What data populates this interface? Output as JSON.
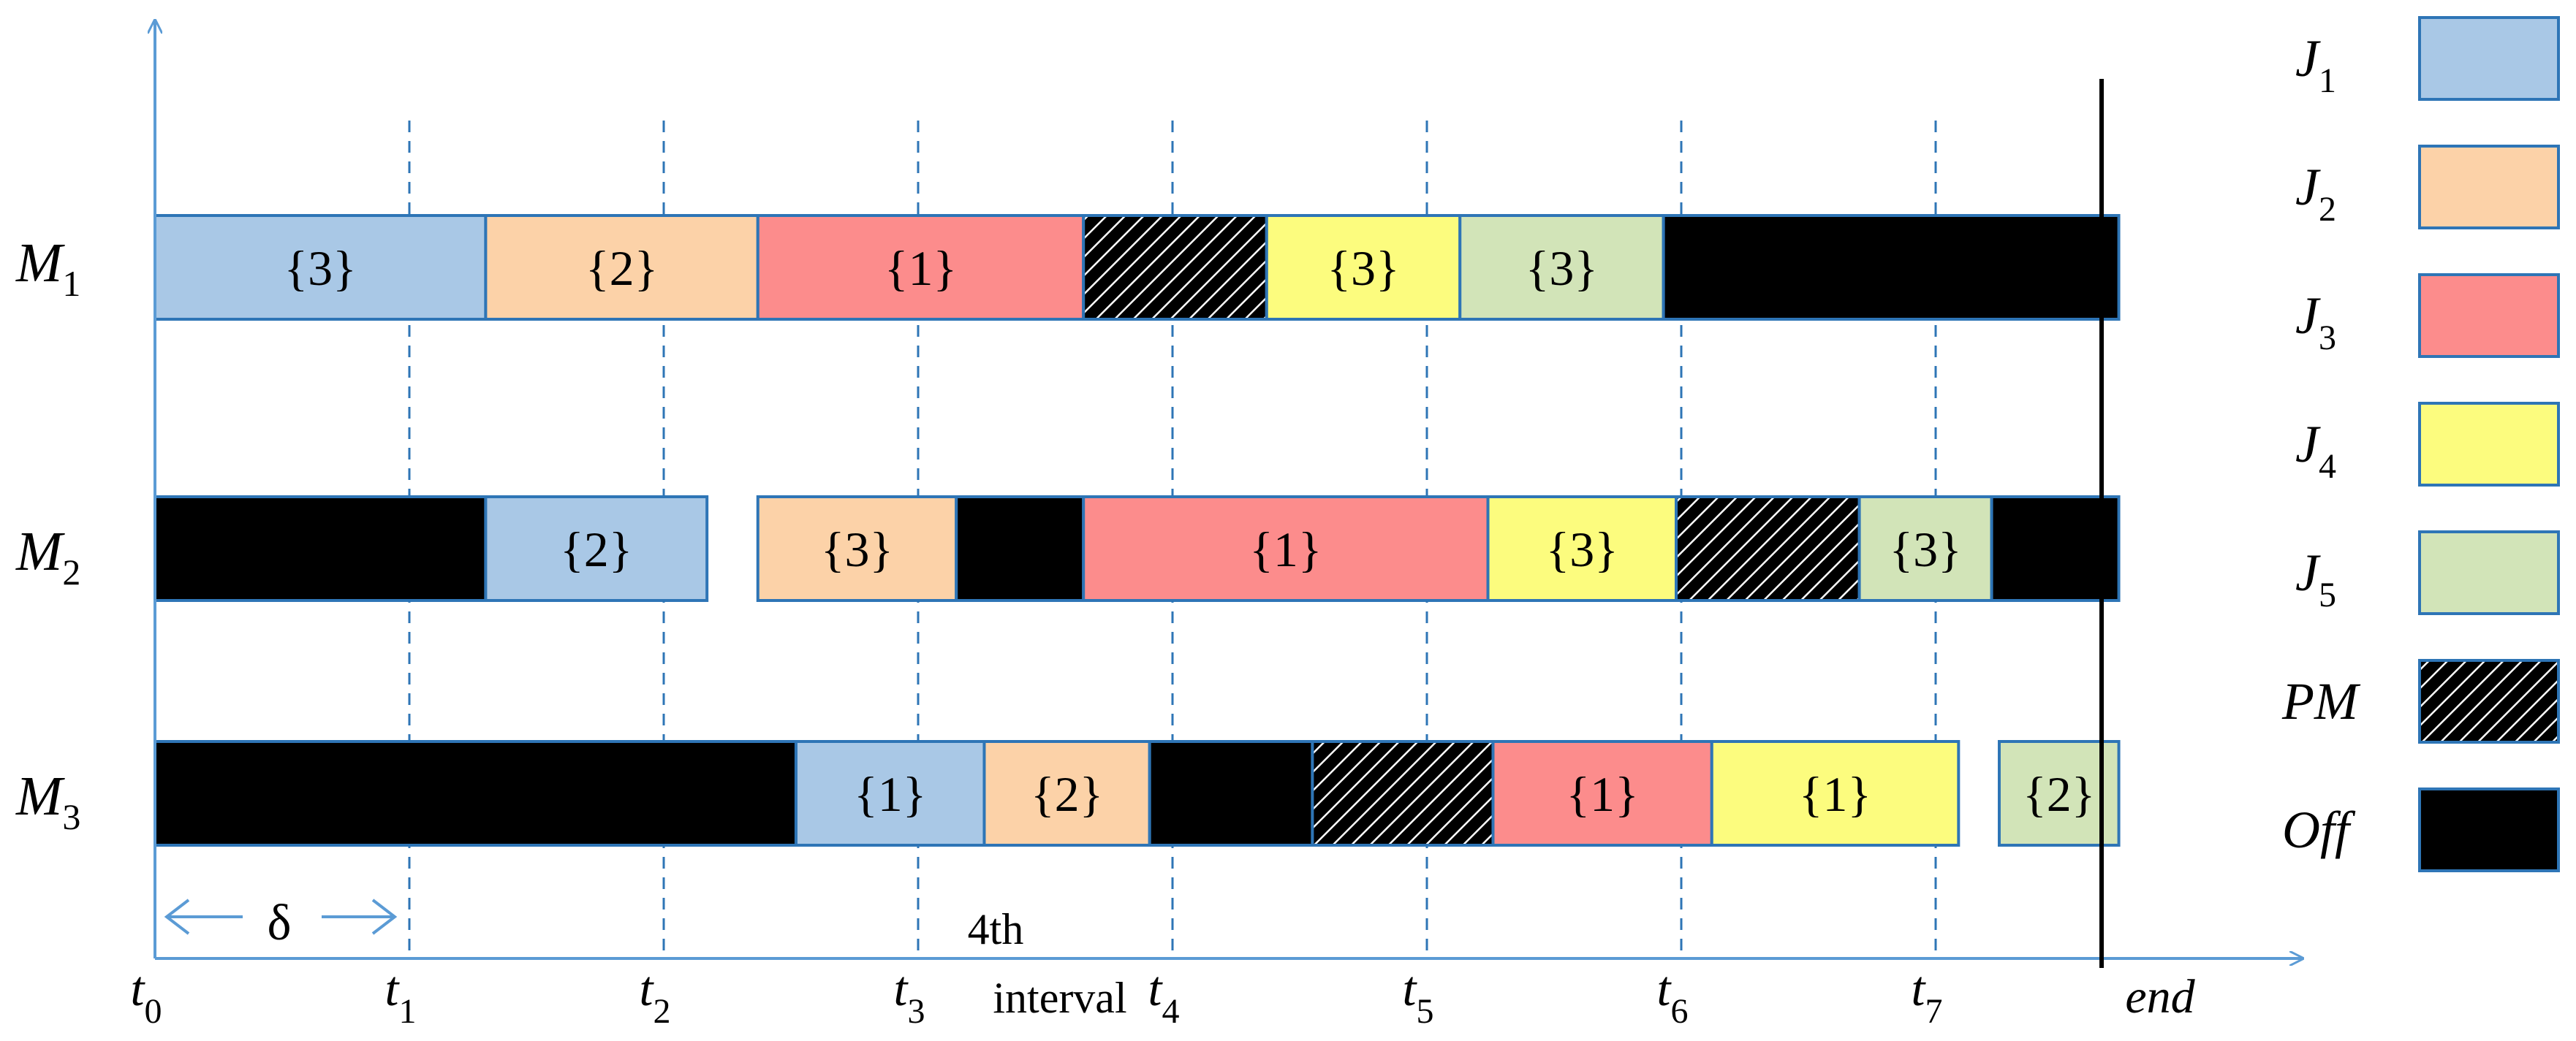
{
  "machines": [
    {
      "name": "M",
      "sub": "1",
      "blocks": [
        {
          "from": 0,
          "to": 1.3,
          "kind": "J1",
          "label": "{3}"
        },
        {
          "from": 1.3,
          "to": 2.37,
          "kind": "J2",
          "label": "{2}"
        },
        {
          "from": 2.37,
          "to": 3.65,
          "kind": "J3",
          "label": "{1}"
        },
        {
          "from": 3.65,
          "to": 4.37,
          "kind": "PM",
          "label": ""
        },
        {
          "from": 4.37,
          "to": 5.13,
          "kind": "J4",
          "label": "{3}"
        },
        {
          "from": 5.13,
          "to": 5.93,
          "kind": "J5",
          "label": "{3}"
        },
        {
          "from": 5.93,
          "to": 7.72,
          "kind": "Off",
          "label": ""
        }
      ]
    },
    {
      "name": "M",
      "sub": "2",
      "blocks": [
        {
          "from": 0,
          "to": 1.3,
          "kind": "Off",
          "label": ""
        },
        {
          "from": 1.3,
          "to": 2.17,
          "kind": "J1",
          "label": "{2}"
        },
        {
          "from": 2.37,
          "to": 3.15,
          "kind": "J2",
          "label": "{3}"
        },
        {
          "from": 3.15,
          "to": 3.65,
          "kind": "Off",
          "label": ""
        },
        {
          "from": 3.65,
          "to": 5.24,
          "kind": "J3",
          "label": "{1}"
        },
        {
          "from": 5.24,
          "to": 5.98,
          "kind": "J4",
          "label": "{3}"
        },
        {
          "from": 5.98,
          "to": 6.7,
          "kind": "PM",
          "label": ""
        },
        {
          "from": 6.7,
          "to": 7.22,
          "kind": "J5",
          "label": "{3}"
        },
        {
          "from": 7.22,
          "to": 7.72,
          "kind": "Off",
          "label": ""
        }
      ]
    },
    {
      "name": "M",
      "sub": "3",
      "blocks": [
        {
          "from": 0,
          "to": 2.52,
          "kind": "Off",
          "label": ""
        },
        {
          "from": 2.52,
          "to": 3.26,
          "kind": "J1",
          "label": "{1}"
        },
        {
          "from": 3.26,
          "to": 3.91,
          "kind": "J2",
          "label": "{2}"
        },
        {
          "from": 3.91,
          "to": 4.55,
          "kind": "Off",
          "label": ""
        },
        {
          "from": 4.55,
          "to": 5.26,
          "kind": "PM",
          "label": ""
        },
        {
          "from": 5.26,
          "to": 6.12,
          "kind": "J3",
          "label": "{1}"
        },
        {
          "from": 6.12,
          "to": 7.09,
          "kind": "J4",
          "label": "{1}"
        },
        {
          "from": 7.25,
          "to": 7.72,
          "kind": "J5",
          "label": "{2}"
        }
      ]
    }
  ],
  "ticks": [
    {
      "name": "t",
      "sub": "0"
    },
    {
      "name": "t",
      "sub": "1"
    },
    {
      "name": "t",
      "sub": "2"
    },
    {
      "name": "t",
      "sub": "3"
    },
    {
      "name": "t",
      "sub": "4"
    },
    {
      "name": "t",
      "sub": "5"
    },
    {
      "name": "t",
      "sub": "6"
    },
    {
      "name": "t",
      "sub": "7"
    }
  ],
  "end_label": "end",
  "delta_label": "δ",
  "interval_label_line1": "4th",
  "interval_label_line2": "interval",
  "legend": [
    {
      "name": "J",
      "sub": "1",
      "kind": "J1"
    },
    {
      "name": "J",
      "sub": "2",
      "kind": "J2"
    },
    {
      "name": "J",
      "sub": "3",
      "kind": "J3"
    },
    {
      "name": "J",
      "sub": "4",
      "kind": "J4"
    },
    {
      "name": "J",
      "sub": "5",
      "kind": "J5"
    },
    {
      "name": "PM",
      "sub": "",
      "kind": "PM"
    },
    {
      "name": "Off",
      "sub": "",
      "kind": "Off"
    }
  ],
  "colors": {
    "J1": "#a9c8e6",
    "J2": "#fcd2a8",
    "J3": "#fc8c8c",
    "J4": "#fcfc7e",
    "J5": "#d2e4b8",
    "Off": "#000000",
    "border": "#2e75b6",
    "axis": "#5b9bd5",
    "gridline": "#2e75b6"
  }
}
